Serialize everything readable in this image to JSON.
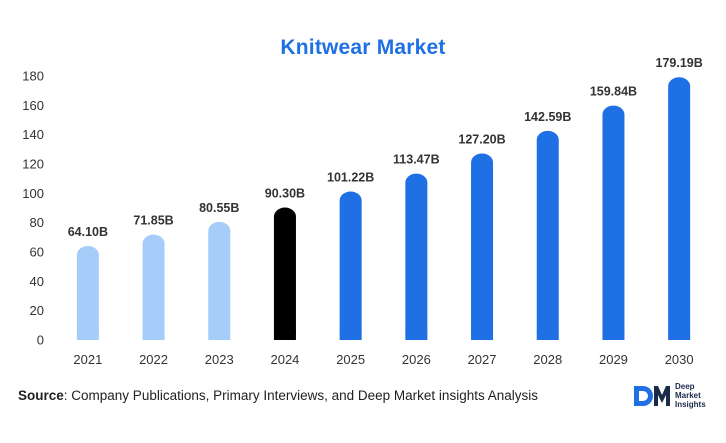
{
  "chart_data": {
    "type": "bar",
    "title": "Knitwear Market",
    "categories": [
      "2021",
      "2022",
      "2023",
      "2024",
      "2025",
      "2026",
      "2027",
      "2028",
      "2029",
      "2030"
    ],
    "values": [
      64.1,
      71.85,
      80.55,
      90.3,
      101.22,
      113.47,
      127.2,
      142.59,
      159.84,
      179.19
    ],
    "data_labels": [
      "64.10B",
      "71.85B",
      "80.55B",
      "90.30B",
      "101.22B",
      "113.47B",
      "127.20B",
      "142.59B",
      "159.84B",
      "179.19B"
    ],
    "xlabel": "",
    "ylabel": "",
    "ylim": [
      0,
      180
    ],
    "yticks": [
      0,
      20,
      40,
      60,
      80,
      100,
      120,
      140,
      160,
      180
    ],
    "grid": false,
    "legend": "none",
    "colors": {
      "historical": "#a6cdfa",
      "current": "#000000",
      "forecast": "#1f6fe5"
    },
    "bar_color_groups": [
      "historical",
      "historical",
      "historical",
      "current",
      "forecast",
      "forecast",
      "forecast",
      "forecast",
      "forecast",
      "forecast"
    ]
  },
  "source": {
    "label": "Source",
    "text": ": Company Publications, Primary Interviews, and Deep Market insights Analysis"
  },
  "logo": {
    "mark_text": "DM",
    "lines": [
      "Deep",
      "Market",
      "Insights"
    ]
  }
}
